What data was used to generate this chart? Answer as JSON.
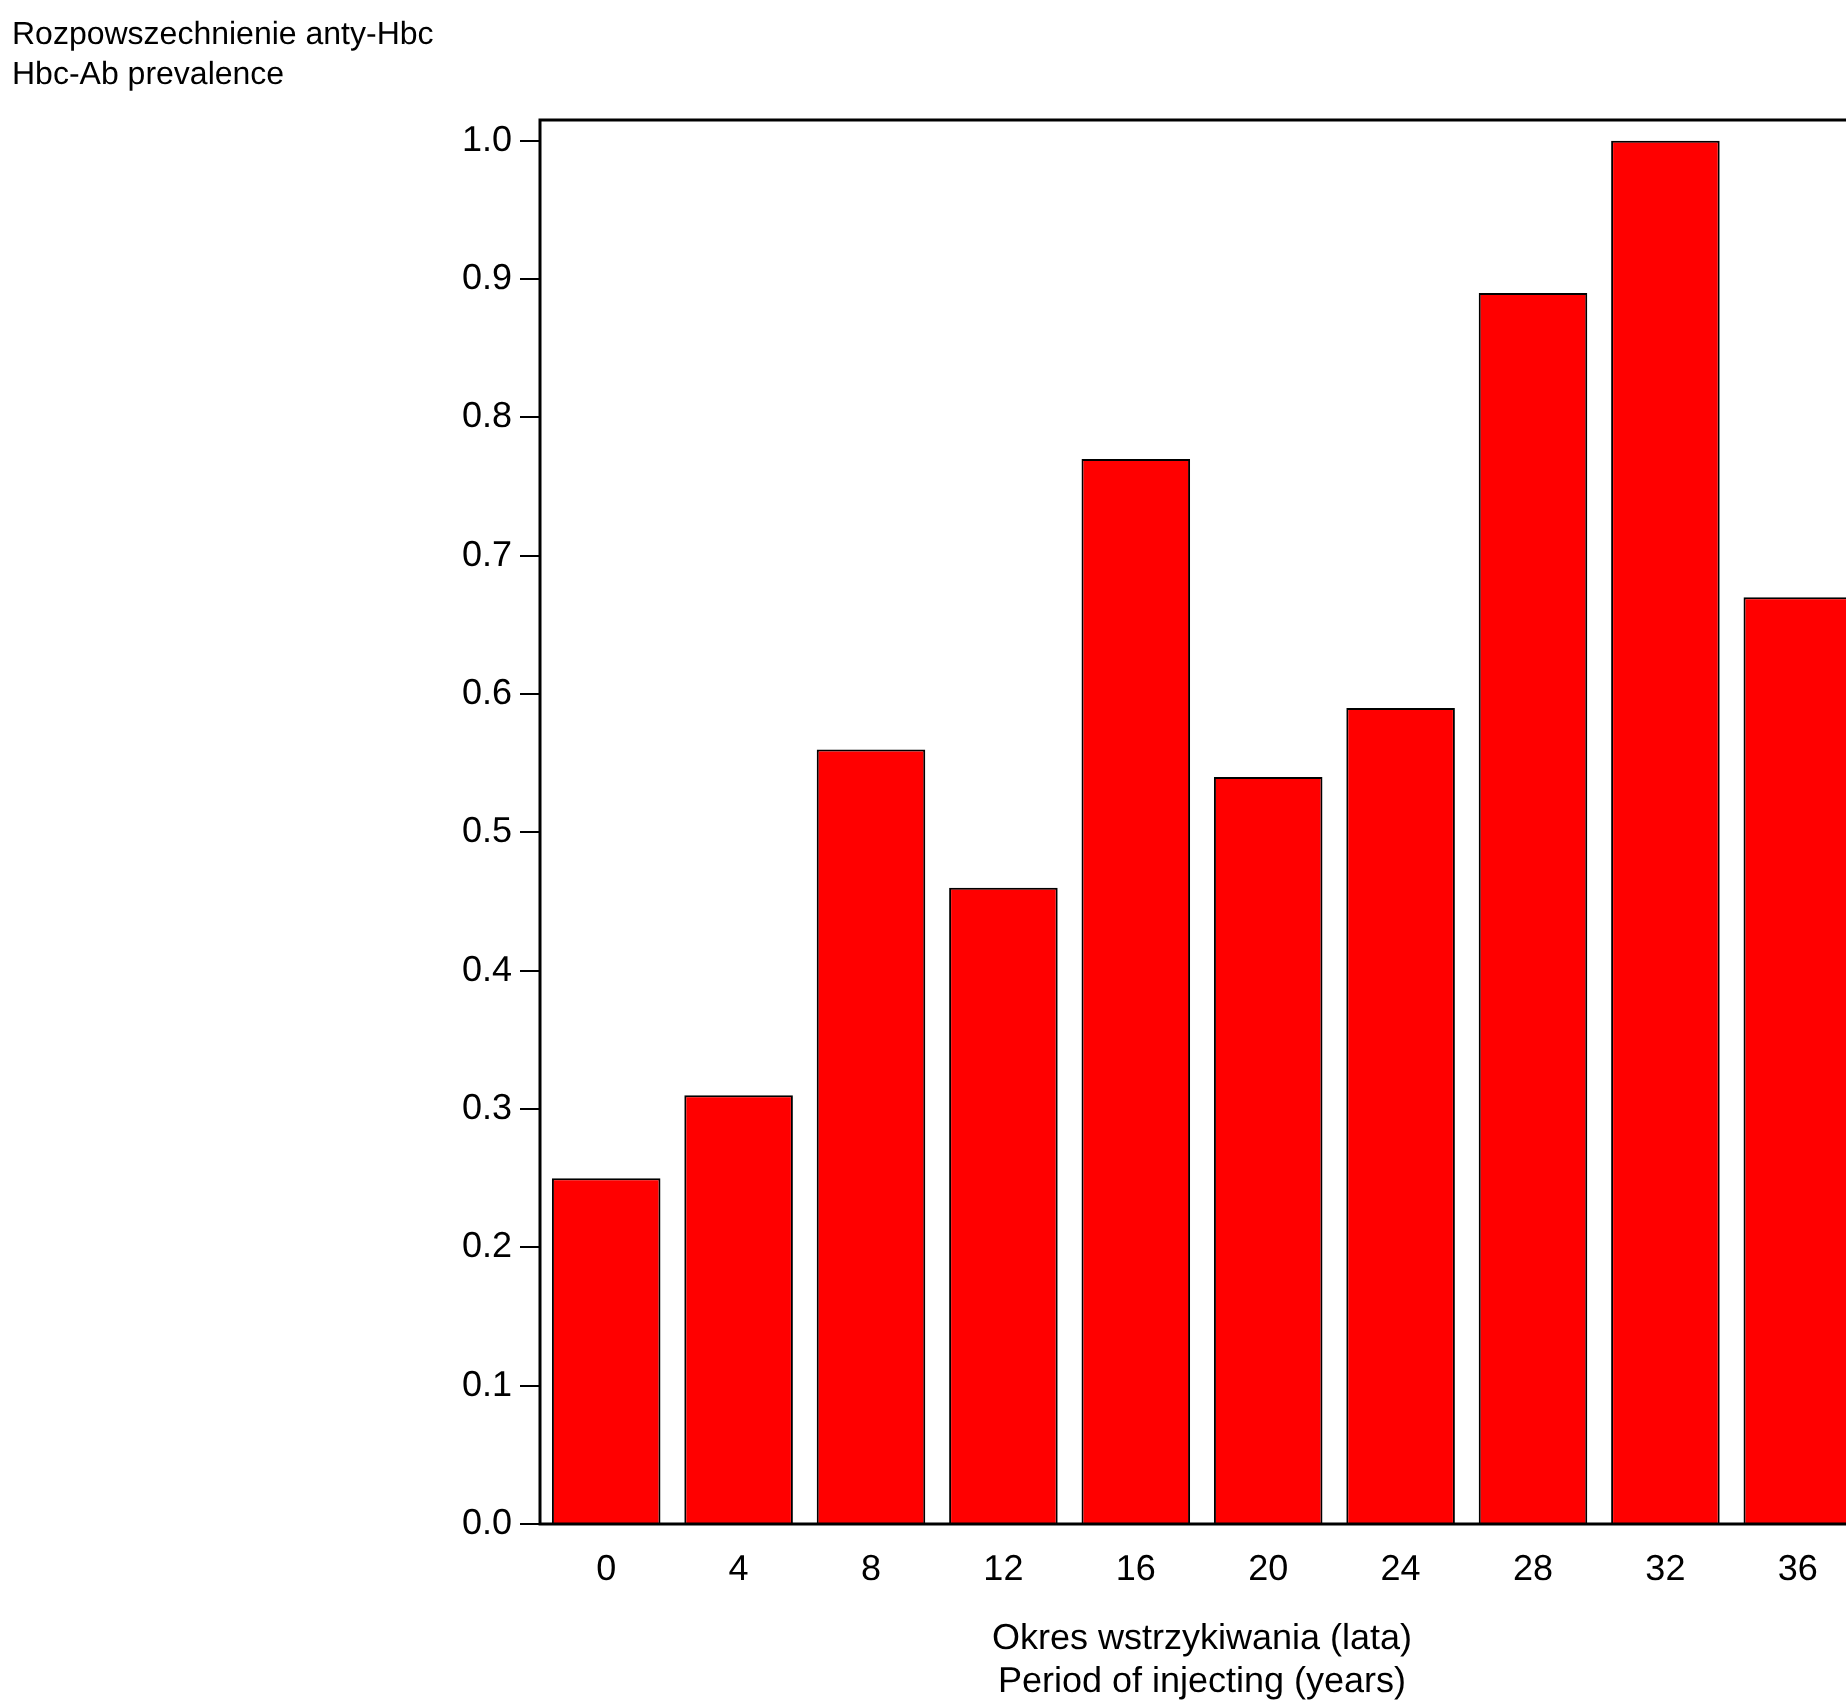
{
  "chart_data": {
    "type": "bar",
    "ylabel": "Rozpowszechnienie anty-Hbc\nHbc-Ab prevalence",
    "xlabel": "Okres wstrzykiwania (lata)\nPeriod of injecting (years)",
    "categories": [
      "0",
      "4",
      "8",
      "12",
      "16",
      "20",
      "24",
      "28",
      "32",
      "36"
    ],
    "values": [
      0.25,
      0.31,
      0.56,
      0.46,
      0.77,
      0.54,
      0.59,
      0.89,
      1.0,
      0.67
    ],
    "color": "#ff0000",
    "ylim": [
      0,
      1.015
    ],
    "yticks": [
      {
        "value": 0,
        "label": "0.0"
      },
      {
        "value": 0.1,
        "label": "0.1"
      },
      {
        "value": 0.2,
        "label": "0.2"
      },
      {
        "value": 0.3,
        "label": "0.3"
      },
      {
        "value": 0.4,
        "label": "0.4"
      },
      {
        "value": 0.5,
        "label": "0.5"
      },
      {
        "value": 0.6,
        "label": "0.6"
      },
      {
        "value": 0.7,
        "label": "0.7"
      },
      {
        "value": 0.8,
        "label": "0.8"
      },
      {
        "value": 0.9,
        "label": "0.9"
      },
      {
        "value": 1.0,
        "label": "1.0"
      }
    ],
    "grid": false,
    "legend": false
  }
}
